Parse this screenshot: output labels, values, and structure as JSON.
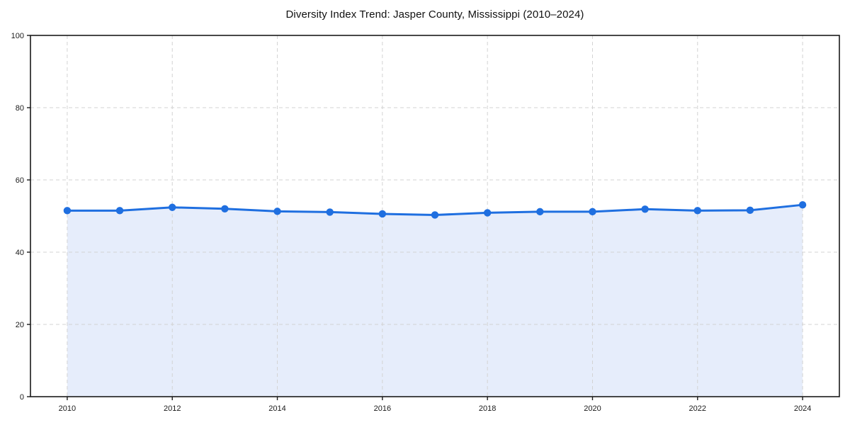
{
  "chart_data": {
    "type": "area",
    "title": "Diversity Index Trend: Jasper County, Mississippi (2010–2024)",
    "xlabel": "",
    "ylabel": "",
    "x": [
      2010,
      2011,
      2012,
      2013,
      2014,
      2015,
      2016,
      2017,
      2018,
      2019,
      2020,
      2021,
      2022,
      2023,
      2024
    ],
    "values": [
      51.5,
      51.5,
      52.4,
      52.0,
      51.3,
      51.1,
      50.6,
      50.3,
      50.9,
      51.2,
      51.2,
      51.9,
      51.5,
      51.6,
      53.1
    ],
    "x_ticks": [
      2010,
      2012,
      2014,
      2016,
      2018,
      2020,
      2022,
      2024
    ],
    "y_ticks": [
      0,
      20,
      40,
      60,
      80,
      100
    ],
    "xlim": [
      2009.3,
      2024.7
    ],
    "ylim": [
      0,
      100
    ],
    "grid": true,
    "legend": null,
    "marker": "circle",
    "colors": {
      "line": "#1f6fe0",
      "marker": "#1f6fe0",
      "fill": "#e6edfb",
      "grid": "#d3d3d3",
      "spine": "#1a1a1a",
      "tick_label": "#1a1a1a",
      "background": "#ffffff"
    }
  }
}
